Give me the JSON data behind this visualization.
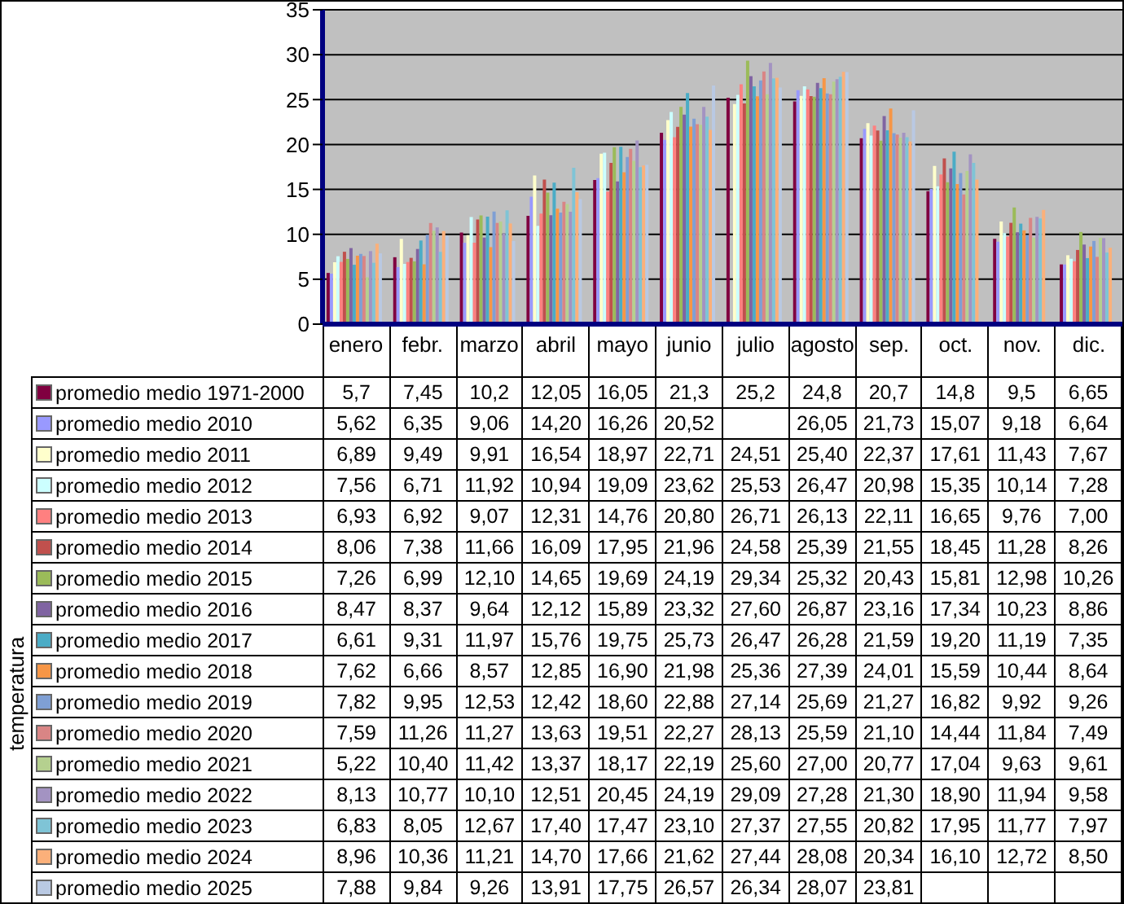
{
  "chart_data": {
    "type": "bar",
    "annotations": [
      "temperatura"
    ],
    "categories": [
      "enero",
      "febr.",
      "marzo",
      "abril",
      "mayo",
      "junio",
      "julio",
      "agosto",
      "sep.",
      "oct.",
      "nov.",
      "dic."
    ],
    "ylim": [
      0,
      35
    ],
    "yticks": [
      0,
      5,
      10,
      15,
      20,
      25,
      30,
      35
    ],
    "grid": "y",
    "legend": "bottom",
    "series": [
      {
        "name": "promedio medio 1971-2000",
        "color": "#800040",
        "values": [
          5.7,
          7.45,
          10.2,
          12.05,
          16.05,
          21.3,
          25.2,
          24.8,
          20.7,
          14.8,
          9.5,
          6.65
        ],
        "value_labels": [
          "5,7",
          "7,45",
          "10,2",
          "12,05",
          "16,05",
          "21,3",
          "25,2",
          "24,8",
          "20,7",
          "14,8",
          "9,5",
          "6,65"
        ]
      },
      {
        "name": "promedio medio 2010",
        "color": "#9999ff",
        "values": [
          5.62,
          6.35,
          9.06,
          14.2,
          16.26,
          20.52,
          null,
          26.05,
          21.73,
          15.07,
          9.18,
          6.64
        ],
        "value_labels": [
          "5,62",
          "6,35",
          "9,06",
          "14,20",
          "16,26",
          "20,52",
          null,
          "26,05",
          "21,73",
          "15,07",
          "9,18",
          "6,64"
        ]
      },
      {
        "name": "promedio medio 2011",
        "color": "#ffffcc",
        "values": [
          6.89,
          9.49,
          9.91,
          16.54,
          18.97,
          22.71,
          24.51,
          25.4,
          22.37,
          17.61,
          11.43,
          7.67
        ],
        "value_labels": [
          "6,89",
          "9,49",
          "9,91",
          "16,54",
          "18,97",
          "22,71",
          "24,51",
          "25,40",
          "22,37",
          "17,61",
          "11,43",
          "7,67"
        ]
      },
      {
        "name": "promedio medio 2012",
        "color": "#ccffff",
        "values": [
          7.56,
          6.71,
          11.92,
          10.94,
          19.09,
          23.62,
          25.53,
          26.47,
          20.98,
          15.35,
          10.14,
          7.28
        ],
        "value_labels": [
          "7,56",
          "6,71",
          "11,92",
          "10,94",
          "19,09",
          "23,62",
          "25,53",
          "26,47",
          "20,98",
          "15,35",
          "10,14",
          "7,28"
        ]
      },
      {
        "name": "promedio medio 2013",
        "color": "#ff8080",
        "values": [
          6.93,
          6.92,
          9.07,
          12.31,
          14.76,
          20.8,
          26.71,
          26.13,
          22.11,
          16.65,
          9.76,
          7.0
        ],
        "value_labels": [
          "6,93",
          "6,92",
          "9,07",
          "12,31",
          "14,76",
          "20,80",
          "26,71",
          "26,13",
          "22,11",
          "16,65",
          "9,76",
          "7,00"
        ]
      },
      {
        "name": "promedio medio 2014",
        "color": "#c0504d",
        "values": [
          8.06,
          7.38,
          11.66,
          16.09,
          17.95,
          21.96,
          24.58,
          25.39,
          21.55,
          18.45,
          11.28,
          8.26
        ],
        "value_labels": [
          "8,06",
          "7,38",
          "11,66",
          "16,09",
          "17,95",
          "21,96",
          "24,58",
          "25,39",
          "21,55",
          "18,45",
          "11,28",
          "8,26"
        ]
      },
      {
        "name": "promedio medio 2015",
        "color": "#9bbb59",
        "values": [
          7.26,
          6.99,
          12.1,
          14.65,
          19.69,
          24.19,
          29.34,
          25.32,
          20.43,
          15.81,
          12.98,
          10.26
        ],
        "value_labels": [
          "7,26",
          "6,99",
          "12,10",
          "14,65",
          "19,69",
          "24,19",
          "29,34",
          "25,32",
          "20,43",
          "15,81",
          "12,98",
          "10,26"
        ]
      },
      {
        "name": "promedio medio 2016",
        "color": "#8064a2",
        "values": [
          8.47,
          8.37,
          9.64,
          12.12,
          15.89,
          23.32,
          27.6,
          26.87,
          23.16,
          17.34,
          10.23,
          8.86
        ],
        "value_labels": [
          "8,47",
          "8,37",
          "9,64",
          "12,12",
          "15,89",
          "23,32",
          "27,60",
          "26,87",
          "23,16",
          "17,34",
          "10,23",
          "8,86"
        ]
      },
      {
        "name": "promedio medio 2017",
        "color": "#4bacc6",
        "values": [
          6.61,
          9.31,
          11.97,
          15.76,
          19.75,
          25.73,
          26.47,
          26.28,
          21.59,
          19.2,
          11.19,
          7.35
        ],
        "value_labels": [
          "6,61",
          "9,31",
          "11,97",
          "15,76",
          "19,75",
          "25,73",
          "26,47",
          "26,28",
          "21,59",
          "19,20",
          "11,19",
          "7,35"
        ]
      },
      {
        "name": "promedio medio 2018",
        "color": "#f79646",
        "values": [
          7.62,
          6.66,
          8.57,
          12.85,
          16.9,
          21.98,
          25.36,
          27.39,
          24.01,
          15.59,
          10.44,
          8.64
        ],
        "value_labels": [
          "7,62",
          "6,66",
          "8,57",
          "12,85",
          "16,90",
          "21,98",
          "25,36",
          "27,39",
          "24,01",
          "15,59",
          "10,44",
          "8,64"
        ]
      },
      {
        "name": "promedio medio 2019",
        "color": "#7f9fd4",
        "values": [
          7.82,
          9.95,
          12.53,
          12.42,
          18.6,
          22.88,
          27.14,
          25.69,
          21.27,
          16.82,
          9.92,
          9.26
        ],
        "value_labels": [
          "7,82",
          "9,95",
          "12,53",
          "12,42",
          "18,60",
          "22,88",
          "27,14",
          "25,69",
          "21,27",
          "16,82",
          "9,92",
          "9,26"
        ]
      },
      {
        "name": "promedio medio 2020",
        "color": "#d98585",
        "values": [
          7.59,
          11.26,
          11.27,
          13.63,
          19.51,
          22.27,
          28.13,
          25.59,
          21.1,
          14.44,
          11.84,
          7.49
        ],
        "value_labels": [
          "7,59",
          "11,26",
          "11,27",
          "13,63",
          "19,51",
          "22,27",
          "28,13",
          "25,59",
          "21,10",
          "14,44",
          "11,84",
          "7,49"
        ]
      },
      {
        "name": "promedio medio 2021",
        "color": "#b5d08f",
        "values": [
          5.22,
          10.4,
          11.42,
          13.37,
          18.17,
          22.19,
          25.6,
          27.0,
          20.77,
          17.04,
          9.63,
          9.61
        ],
        "value_labels": [
          "5,22",
          "10,40",
          "11,42",
          "13,37",
          "18,17",
          "22,19",
          "25,60",
          "27,00",
          "20,77",
          "17,04",
          "9,63",
          "9,61"
        ]
      },
      {
        "name": "promedio medio 2022",
        "color": "#a393c2",
        "values": [
          8.13,
          10.77,
          10.1,
          12.51,
          20.45,
          24.19,
          29.09,
          27.28,
          21.3,
          18.9,
          11.94,
          9.58
        ],
        "value_labels": [
          "8,13",
          "10,77",
          "10,10",
          "12,51",
          "20,45",
          "24,19",
          "29,09",
          "27,28",
          "21,30",
          "18,90",
          "11,94",
          "9,58"
        ]
      },
      {
        "name": "promedio medio 2023",
        "color": "#7fc4d6",
        "values": [
          6.83,
          8.05,
          12.67,
          17.4,
          17.47,
          23.1,
          27.37,
          27.55,
          20.82,
          17.95,
          11.77,
          7.97
        ],
        "value_labels": [
          "6,83",
          "8,05",
          "12,67",
          "17,40",
          "17,47",
          "23,10",
          "27,37",
          "27,55",
          "20,82",
          "17,95",
          "11,77",
          "7,97"
        ]
      },
      {
        "name": "promedio medio 2024",
        "color": "#fbb07a",
        "values": [
          8.96,
          10.36,
          11.21,
          14.7,
          17.66,
          21.62,
          27.44,
          28.08,
          20.34,
          16.1,
          12.72,
          8.5
        ],
        "value_labels": [
          "8,96",
          "10,36",
          "11,21",
          "14,70",
          "17,66",
          "21,62",
          "27,44",
          "28,08",
          "20,34",
          "16,10",
          "12,72",
          "8,50"
        ]
      },
      {
        "name": "promedio medio 2025",
        "color": "#b9c9e3",
        "values": [
          7.88,
          9.84,
          9.26,
          13.91,
          17.75,
          26.57,
          26.34,
          28.07,
          23.81,
          null,
          null,
          null
        ],
        "value_labels": [
          "7,88",
          "9,84",
          "9,26",
          "13,91",
          "17,75",
          "26,57",
          "26,34",
          "28,07",
          "23,81",
          null,
          null,
          null
        ]
      }
    ]
  }
}
